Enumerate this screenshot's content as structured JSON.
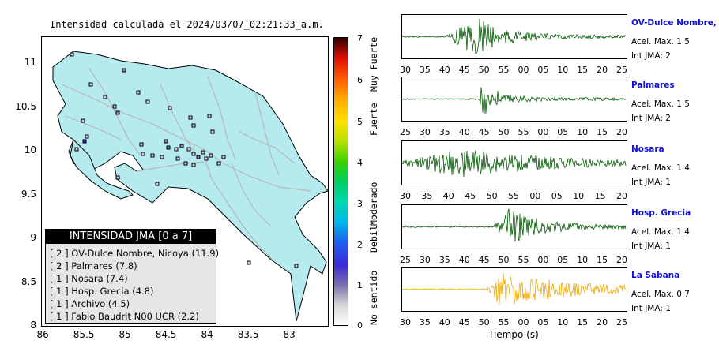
{
  "header": {
    "title": "Intensidad calculada el 2024/03/07_02:21:33_a.m."
  },
  "map": {
    "y_ticks": [
      "11",
      "10.5",
      "10",
      "9.5",
      "9",
      "8.5",
      "8"
    ],
    "x_ticks": [
      "-86",
      "-85.5",
      "-85",
      "-84.5",
      "-84",
      "-83.5",
      "-83"
    ],
    "land_color": "#b5ebee",
    "road_color": "#b8b8b8"
  },
  "legend": {
    "title": "INTENSIDAD JMA [0 a 7]",
    "items": [
      "[ 2 ] OV-Dulce Nombre, Nicoya (11.9)",
      "[ 2 ] Palmares (7.8)",
      "[ 1 ] Nosara (7.4)",
      "[ 1 ] Hosp. Grecia (4.8)",
      "[ 1 ] Archivo (4.5)",
      "[ 1 ] Fabio Baudrit N00 UCR (2.2)"
    ]
  },
  "colorbar": {
    "ticks": [
      "7",
      "6",
      "5",
      "4",
      "3",
      "2",
      "1",
      "0"
    ],
    "categories": [
      "Muy Fuerte",
      "Fuerte",
      "Moderado",
      "Debil",
      "No sentido"
    ]
  },
  "waveforms": {
    "xlabel": "Tiempo (s)",
    "panels": [
      {
        "station": "OV-Dulce Nombre, Nicoya",
        "accel": "Acel. Max. 1.5",
        "jma": "Int JMA: 2",
        "color": "#005a00",
        "ticks": [
          "30",
          "35",
          "40",
          "45",
          "50",
          "55",
          "00",
          "05",
          "10",
          "15",
          "20",
          "25"
        ],
        "onset": 0.2,
        "peak": 0.33,
        "amp": 1.0,
        "decay": 0.12
      },
      {
        "station": "Palmares",
        "accel": "Acel. Max. 1.5",
        "jma": "Int JMA: 2",
        "color": "#005a00",
        "ticks": [
          "25",
          "30",
          "35",
          "40",
          "45",
          "50",
          "55",
          "00",
          "05",
          "10",
          "15",
          "20"
        ],
        "onset": 0.34,
        "peak": 0.36,
        "amp": 0.95,
        "decay": 0.07
      },
      {
        "station": "Nosara",
        "accel": "Acel. Max. 1.4",
        "jma": "Int JMA: 1",
        "color": "#005a00",
        "ticks": [
          "30",
          "35",
          "40",
          "45",
          "50",
          "55",
          "00",
          "05",
          "10",
          "15",
          "20"
        ],
        "onset": 0.0,
        "peak": 0.28,
        "amp": 0.75,
        "decay": 0.35
      },
      {
        "station": "Hosp. Grecia",
        "accel": "Acel. Max. 1.4",
        "jma": "Int JMA: 1",
        "color": "#005a00",
        "ticks": [
          "25",
          "30",
          "35",
          "40",
          "45",
          "50",
          "55",
          "00",
          "05",
          "10",
          "15",
          "20"
        ],
        "onset": 0.41,
        "peak": 0.48,
        "amp": 0.95,
        "decay": 0.14
      },
      {
        "station": "La Sabana",
        "accel": "Acel. Max. 0.7",
        "jma": "Int JMA: 1",
        "color": "#f0a800",
        "ticks": [
          "30",
          "35",
          "40",
          "45",
          "50",
          "55",
          "00",
          "05",
          "10",
          "15",
          "20",
          "25"
        ],
        "onset": 0.38,
        "peak": 0.44,
        "amp": 0.9,
        "decay": 0.3
      }
    ]
  }
}
